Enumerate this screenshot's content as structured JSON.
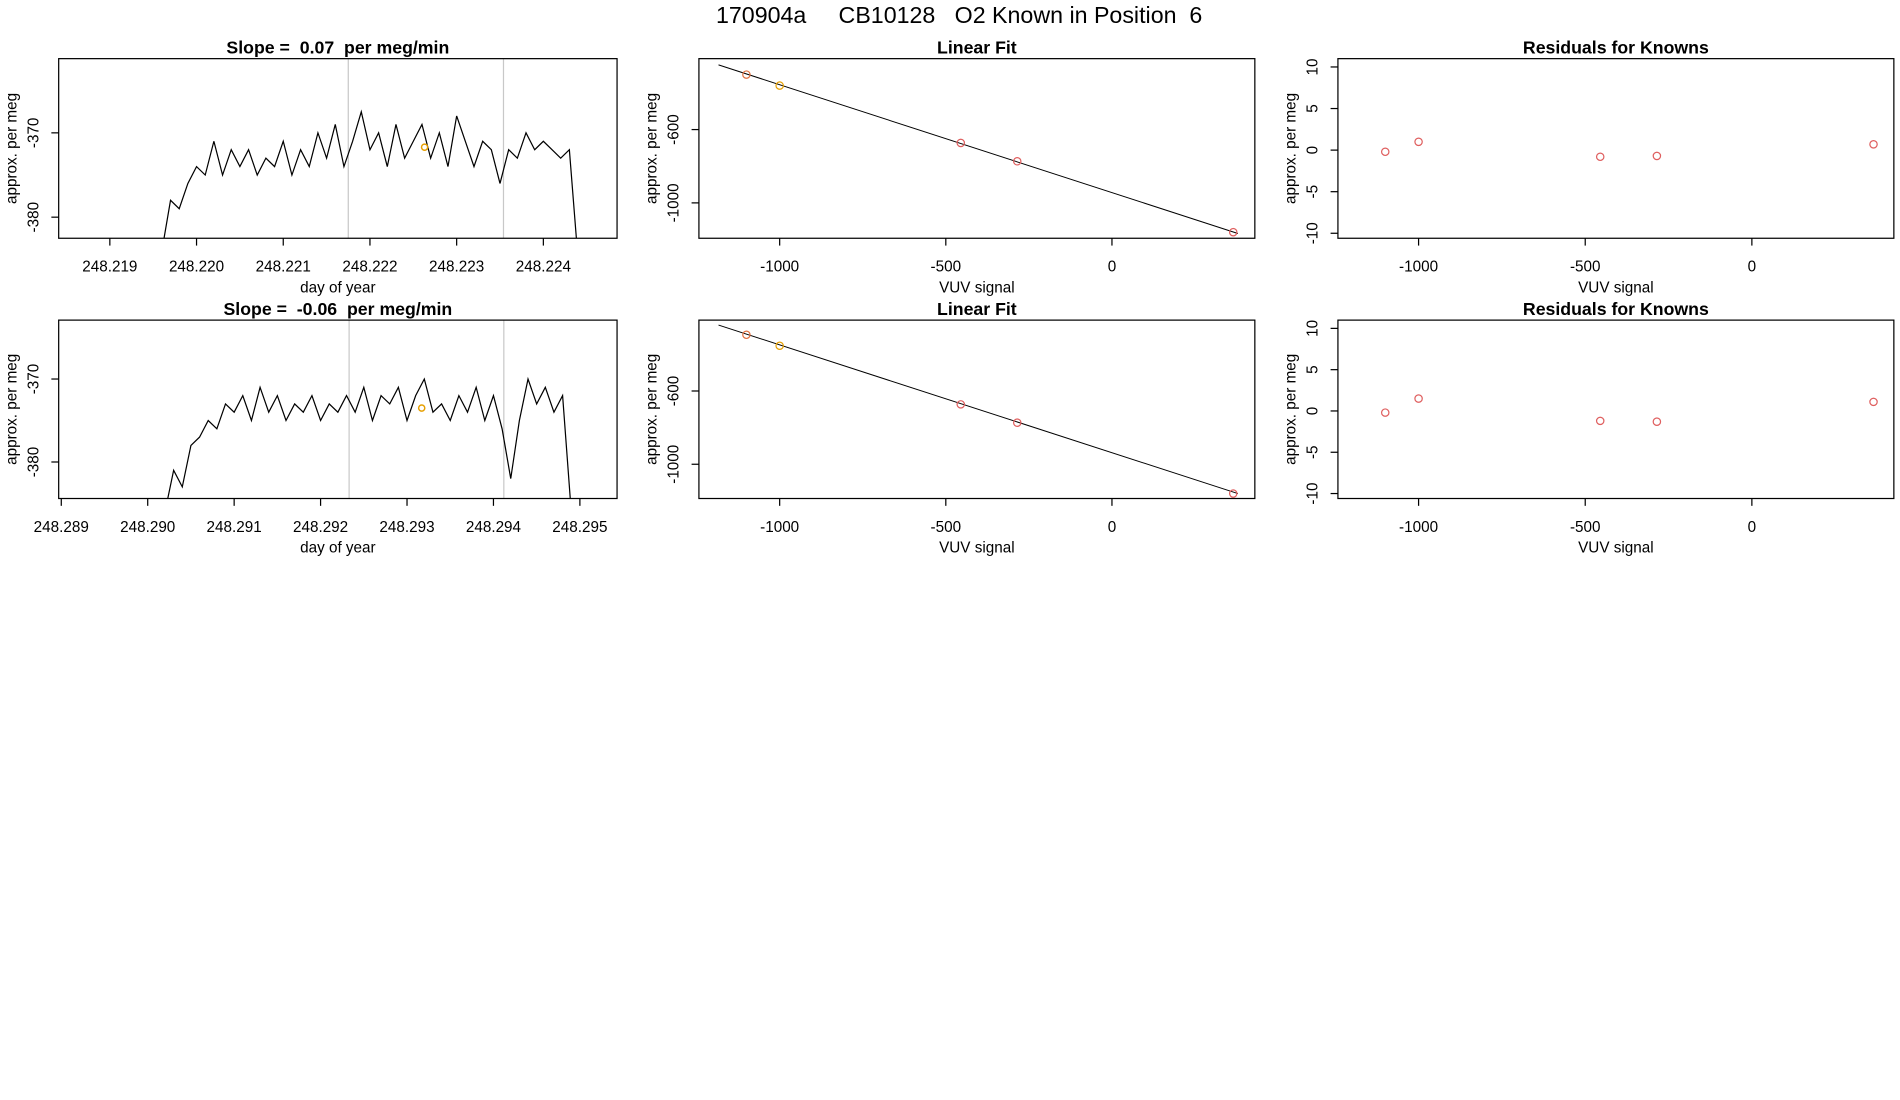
{
  "title": "170904a     CB10128   O2 Known in Position  6",
  "chart_data": [
    {
      "type": "line",
      "title": "Slope =  0.07  per meg/min",
      "xlabel": "day of year",
      "ylabel": "approx. per meg",
      "xlim": [
        248.21841,
        248.22485
      ],
      "ylim": [
        -382.5,
        -361.2
      ],
      "xticks": [
        248.219,
        {
          "value": 248.22,
          "label": "248.220"
        },
        248.221,
        248.222,
        248.223,
        248.224
      ],
      "yticks": [
        -380,
        -370
      ],
      "color": "#000000",
      "x": [
        248.2196,
        248.2197,
        248.2198,
        248.2199,
        248.22,
        248.2201,
        248.2202,
        248.2203,
        248.2204,
        248.2205,
        248.2206,
        248.2207,
        248.2208,
        248.2209,
        248.221,
        248.2211,
        248.2212,
        248.2213,
        248.2214,
        248.2215,
        248.2216,
        248.2217,
        248.2218,
        248.2219,
        248.222,
        248.2221,
        248.2222,
        248.2223,
        248.2224,
        248.2225,
        248.2226,
        248.2227,
        248.2228,
        248.2229,
        248.223,
        248.2231,
        248.2232,
        248.2233,
        248.2234,
        248.2235,
        248.2236,
        248.2237,
        248.2238,
        248.2239,
        248.224,
        248.2241,
        248.2242,
        248.2243,
        248.2244
      ],
      "values": [
        -384,
        -378,
        -379,
        -376,
        -374,
        -375,
        -371,
        -375,
        -372,
        -374,
        -372,
        -375,
        -373,
        -374,
        -371,
        -375,
        -372,
        -374,
        -370,
        -373,
        -369,
        -374,
        -371,
        -367.5,
        -372,
        -370,
        -374,
        -369,
        -373,
        -371,
        -369,
        -373,
        -370,
        -374,
        -368,
        -371,
        -374,
        -371,
        -372,
        -376,
        -372,
        -373,
        -370,
        -372,
        -371,
        -372,
        -373,
        -372,
        -385
      ],
      "vlines": [
        248.22175,
        248.22354
      ],
      "vline_color": "#c8c8c8",
      "highlight": {
        "x": 248.22263,
        "y": -371.7,
        "color": "#e69f00"
      }
    },
    {
      "type": "scatter",
      "title": "Linear Fit",
      "xlabel": "VUV signal",
      "ylabel": "approx. per meg",
      "xlim": [
        -1243,
        430
      ],
      "ylim": [
        -1193,
        -213
      ],
      "xticks": [
        -1000,
        -500,
        0
      ],
      "yticks": [
        -1000,
        -600
      ],
      "x": [
        -1100,
        -1000,
        -455,
        -285,
        365
      ],
      "values": [
        -300,
        -360,
        -673,
        -773,
        -1160
      ],
      "colors": [
        "#e07040",
        "#e69f00",
        "#df5f5f",
        "#df5f5f",
        "#df5f5f"
      ],
      "fit_line": {
        "x": [
          -1184,
          379
        ],
        "y": [
          -247,
          -1167
        ],
        "color": "#000000"
      }
    },
    {
      "type": "scatter",
      "title": "Residuals for Knowns",
      "xlabel": "VUV signal",
      "ylabel": "approx. per meg",
      "xlim": [
        -1242,
        426
      ],
      "ylim": [
        -10.6,
        11.0
      ],
      "xticks": [
        -1000,
        -500,
        0
      ],
      "yticks": [
        -10,
        -5,
        0,
        5,
        10
      ],
      "x": [
        -1100,
        -1000,
        -455,
        -285,
        365
      ],
      "values": [
        -0.2,
        1.0,
        -0.8,
        -0.7,
        0.7
      ],
      "colors": [
        "#df5f5f",
        "#df5f5f",
        "#df5f5f",
        "#df5f5f",
        "#df5f5f"
      ]
    },
    {
      "type": "line",
      "title": "Slope =  -0.06  per meg/min",
      "xlabel": "day of year",
      "ylabel": "approx. per meg",
      "xlim": [
        248.28897,
        248.29543
      ],
      "ylim": [
        -384.4,
        -362.9
      ],
      "xticks": [
        248.289,
        {
          "value": 248.29,
          "label": "248.290"
        },
        248.291,
        248.292,
        248.293,
        248.294,
        248.295
      ],
      "yticks": [
        -380,
        -370
      ],
      "color": "#000000",
      "x": [
        248.2902,
        248.2903,
        248.2904,
        248.2905,
        248.2906,
        248.2907,
        248.2908,
        248.2909,
        248.291,
        248.2911,
        248.2912,
        248.2913,
        248.2914,
        248.2915,
        248.2916,
        248.2917,
        248.2918,
        248.2919,
        248.292,
        248.2921,
        248.2922,
        248.2923,
        248.2924,
        248.2925,
        248.2926,
        248.2927,
        248.2928,
        248.2929,
        248.293,
        248.2931,
        248.2932,
        248.2933,
        248.2934,
        248.2935,
        248.2936,
        248.2937,
        248.2938,
        248.2939,
        248.294,
        248.2941,
        248.2942,
        248.2943,
        248.2944,
        248.2945,
        248.2946,
        248.2947,
        248.2948,
        248.2949
      ],
      "values": [
        -386,
        -381,
        -383,
        -378,
        -377,
        -375,
        -376,
        -373,
        -374,
        -372,
        -375,
        -371,
        -374,
        -372,
        -375,
        -373,
        -374,
        -372,
        -375,
        -373,
        -374,
        -372,
        -374,
        -371,
        -375,
        -372,
        -373,
        -371,
        -375,
        -372,
        -370,
        -374,
        -373,
        -375,
        -372,
        -374,
        -371,
        -375,
        -372,
        -376,
        -382,
        -375,
        -370,
        -373,
        -371,
        -374,
        -372,
        -386
      ],
      "vlines": [
        248.29233,
        248.29412
      ],
      "vline_color": "#c8c8c8",
      "highlight": {
        "x": 248.29317,
        "y": -373.5,
        "color": "#e69f00"
      }
    },
    {
      "type": "scatter",
      "title": "Linear Fit",
      "xlabel": "VUV signal",
      "ylabel": "approx. per meg",
      "xlim": [
        -1243,
        430
      ],
      "ylim": [
        -1187,
        -213
      ],
      "xticks": [
        -1000,
        -500,
        0
      ],
      "yticks": [
        -1000,
        -600
      ],
      "x": [
        -1100,
        -1000,
        -455,
        -285,
        365
      ],
      "values": [
        -293,
        -353,
        -673,
        -773,
        -1160
      ],
      "colors": [
        "#e07040",
        "#e69f00",
        "#df5f5f",
        "#df5f5f",
        "#df5f5f"
      ],
      "fit_line": {
        "x": [
          -1184,
          379
        ],
        "y": [
          -240,
          -1160
        ],
        "color": "#000000"
      }
    },
    {
      "type": "scatter",
      "title": "Residuals for Knowns",
      "xlabel": "VUV signal",
      "ylabel": "approx. per meg",
      "xlim": [
        -1242,
        426
      ],
      "ylim": [
        -10.6,
        11.0
      ],
      "xticks": [
        -1000,
        -500,
        0
      ],
      "yticks": [
        -10,
        -5,
        0,
        5,
        10
      ],
      "x": [
        -1100,
        -1000,
        -455,
        -285,
        365
      ],
      "values": [
        -0.2,
        1.5,
        -1.2,
        -1.3,
        1.1
      ],
      "colors": [
        "#df5f5f",
        "#df5f5f",
        "#df5f5f",
        "#df5f5f",
        "#df5f5f"
      ]
    }
  ]
}
